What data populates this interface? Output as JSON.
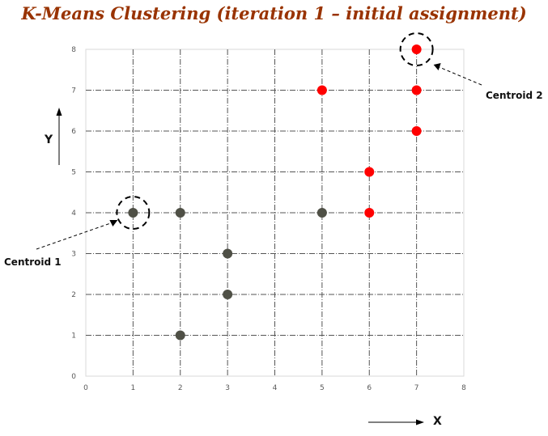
{
  "chart_data": {
    "type": "scatter",
    "title": "K-Means Clustering (iteration 1 – initial assignment)",
    "xlabel": "X",
    "ylabel": "Y",
    "xlim": [
      0,
      8
    ],
    "ylim": [
      0,
      8
    ],
    "xticks": [
      0,
      1,
      2,
      3,
      4,
      5,
      6,
      7,
      8
    ],
    "yticks": [
      0,
      1,
      2,
      3,
      4,
      5,
      6,
      7,
      8
    ],
    "grid": true,
    "grid_style": "dash-dot",
    "series": [
      {
        "color": "#4f5046",
        "points": [
          {
            "x": 1,
            "y": 4
          },
          {
            "x": 2,
            "y": 4
          },
          {
            "x": 3,
            "y": 3
          },
          {
            "x": 3,
            "y": 2
          },
          {
            "x": 2,
            "y": 1
          },
          {
            "x": 5,
            "y": 4
          }
        ]
      },
      {
        "color": "#ff0000",
        "points": [
          {
            "x": 7,
            "y": 8
          },
          {
            "x": 5,
            "y": 7
          },
          {
            "x": 7,
            "y": 7
          },
          {
            "x": 7,
            "y": 6
          },
          {
            "x": 6,
            "y": 5
          },
          {
            "x": 6,
            "y": 4
          }
        ]
      }
    ],
    "annotations": [
      {
        "text": "Centroid 1",
        "x": 1,
        "y": 4
      },
      {
        "text": "Centroid 2",
        "x": 7,
        "y": 8
      }
    ]
  },
  "colors": {
    "title": "#993300",
    "grid": "#555555",
    "frame": "#d9d9d9"
  }
}
